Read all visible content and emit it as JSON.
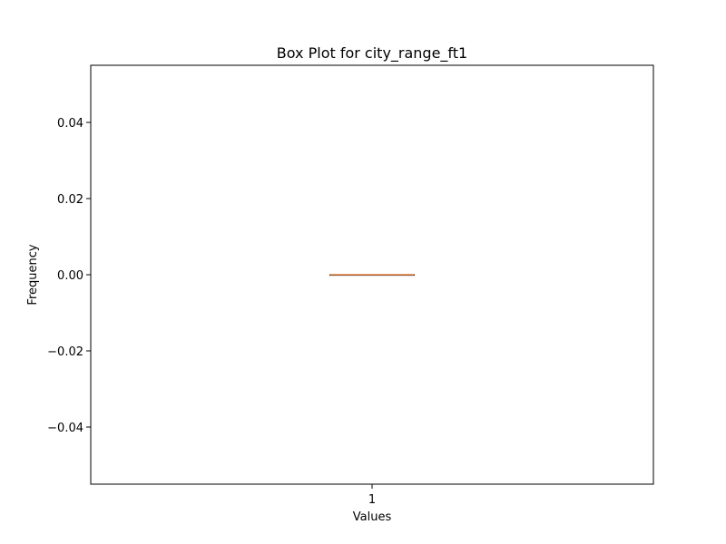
{
  "chart_data": {
    "type": "box",
    "title": "Box Plot for city_range_ft1",
    "xlabel": "Values",
    "ylabel": "Frequency",
    "categories": [
      "1"
    ],
    "ylim": [
      -0.055,
      0.055
    ],
    "yticks": [
      -0.04,
      -0.02,
      0.0,
      0.02,
      0.04
    ],
    "ytick_labels": [
      "−0.04",
      "−0.02",
      "0.00",
      "0.02",
      "0.04"
    ],
    "grid": false,
    "boxes": [
      {
        "category": "1",
        "min": 0,
        "q1": 0,
        "median": 0,
        "q3": 0,
        "max": 0
      }
    ],
    "colors": {
      "box": "#000000",
      "median": "#e07b39"
    }
  }
}
